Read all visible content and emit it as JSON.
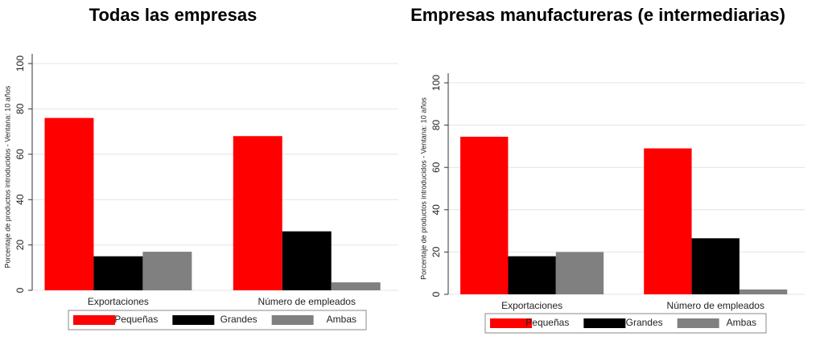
{
  "chart_data": [
    {
      "type": "bar",
      "title": "Todas las empresas",
      "y_label": "Porcentaje de productos introducidos - Ventana: 10 años",
      "categories": [
        "Exportaciones",
        "Número de empleados"
      ],
      "series": [
        {
          "name": "Pequeñas",
          "color": "#ff0000",
          "values": [
            76,
            68
          ]
        },
        {
          "name": "Grandes",
          "color": "#000000",
          "values": [
            15,
            26
          ]
        },
        {
          "name": "Ambas",
          "color": "#808080",
          "values": [
            17,
            3.5
          ]
        }
      ],
      "ylim": [
        0,
        100
      ],
      "yticks": [
        0,
        20,
        40,
        60,
        80,
        100
      ],
      "grid": true,
      "legend": "bottom"
    },
    {
      "type": "bar",
      "title": "Empresas manufactureras (e intermediarias)",
      "y_label": "Porcentaje de productos introducidos - Ventana: 10 años",
      "categories": [
        "Exportaciones",
        "Número de empleados"
      ],
      "series": [
        {
          "name": "Pequeñas",
          "color": "#ff0000",
          "values": [
            74.5,
            69
          ]
        },
        {
          "name": "Grandes",
          "color": "#000000",
          "values": [
            18,
            26.5
          ]
        },
        {
          "name": "Ambas",
          "color": "#808080",
          "values": [
            20,
            2.3
          ]
        }
      ],
      "ylim": [
        0,
        100
      ],
      "yticks": [
        0,
        20,
        40,
        60,
        80,
        100
      ],
      "grid": true,
      "legend": "bottom"
    }
  ]
}
